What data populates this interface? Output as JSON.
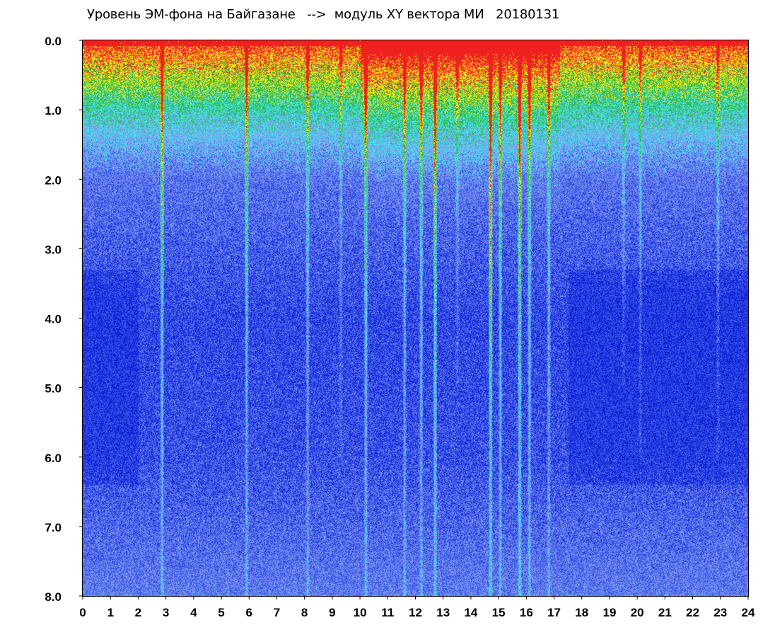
{
  "chart_data": {
    "type": "heatmap",
    "title": "Уровень ЭМ-фона на Байгазане   -->  модуль XY вектора МИ   20180131",
    "xlabel": "",
    "ylabel": "",
    "xlim": [
      0,
      24
    ],
    "ylim": [
      0,
      8
    ],
    "y_inverted": true,
    "x_ticks": [
      0,
      1,
      2,
      3,
      4,
      5,
      6,
      7,
      8,
      9,
      10,
      11,
      12,
      13,
      14,
      15,
      16,
      17,
      18,
      19,
      20,
      21,
      22,
      23,
      24
    ],
    "x_tick_labels": [
      "0",
      "1",
      "2",
      "3",
      "4",
      "5",
      "6",
      "7",
      "8",
      "9",
      "10",
      "11",
      "12",
      "13",
      "14",
      "15",
      "16",
      "17",
      "18",
      "19",
      "20",
      "21",
      "22",
      "23",
      "24"
    ],
    "y_ticks": [
      0,
      1,
      2,
      3,
      4,
      5,
      6,
      7,
      8
    ],
    "y_tick_labels": [
      "0.0",
      "1.0",
      "2.0",
      "3.0",
      "4.0",
      "5.0",
      "6.0",
      "7.0",
      "8.0"
    ],
    "colormap": [
      "#0d1fd6",
      "#3a55e8",
      "#7d95ee",
      "#47e0ea",
      "#2fb84a",
      "#f2ea1a",
      "#ee2020"
    ],
    "grid": false,
    "legend": "none",
    "background_intensity_by_depth": [
      {
        "y": 0.0,
        "level": 0.95
      },
      {
        "y": 0.5,
        "level": 0.75
      },
      {
        "y": 1.0,
        "level": 0.55
      },
      {
        "y": 1.4,
        "level": 0.42
      },
      {
        "y": 2.0,
        "level": 0.28
      },
      {
        "y": 4.0,
        "level": 0.18
      },
      {
        "y": 6.0,
        "level": 0.2
      },
      {
        "y": 8.0,
        "level": 0.3
      }
    ],
    "vertical_streaks": [
      {
        "x": 2.85,
        "strength": 0.7,
        "depth": 8.0
      },
      {
        "x": 5.9,
        "strength": 0.6,
        "depth": 8.0
      },
      {
        "x": 8.1,
        "strength": 0.5,
        "depth": 8.0
      },
      {
        "x": 9.3,
        "strength": 0.3,
        "depth": 6.0
      },
      {
        "x": 10.2,
        "strength": 0.7,
        "depth": 8.0
      },
      {
        "x": 11.6,
        "strength": 0.5,
        "depth": 8.0
      },
      {
        "x": 12.2,
        "strength": 0.6,
        "depth": 8.0
      },
      {
        "x": 12.7,
        "strength": 0.9,
        "depth": 8.0
      },
      {
        "x": 13.5,
        "strength": 0.3,
        "depth": 5.0
      },
      {
        "x": 14.7,
        "strength": 1.0,
        "depth": 8.0
      },
      {
        "x": 15.05,
        "strength": 0.6,
        "depth": 8.0
      },
      {
        "x": 15.75,
        "strength": 1.0,
        "depth": 8.0
      },
      {
        "x": 16.1,
        "strength": 0.7,
        "depth": 8.0
      },
      {
        "x": 16.8,
        "strength": 0.5,
        "depth": 8.0
      },
      {
        "x": 19.5,
        "strength": 0.3,
        "depth": 5.0
      },
      {
        "x": 20.1,
        "strength": 0.3,
        "depth": 6.0
      },
      {
        "x": 22.9,
        "strength": 0.3,
        "depth": 6.0
      }
    ]
  }
}
